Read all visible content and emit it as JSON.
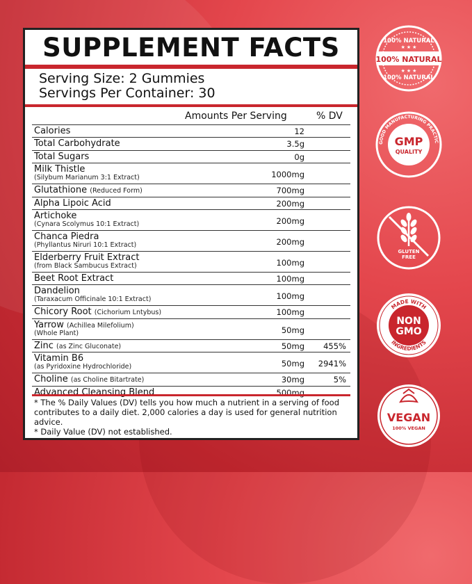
{
  "panel": {
    "title": "SUPPLEMENT FACTS",
    "serving_size": "Serving Size: 2 Gummies",
    "servings_per_container": "Servings Per Container: 30",
    "header_amount": "Amounts Per Serving",
    "header_dv": "% DV",
    "rows": [
      {
        "name": "Calories",
        "sub": "",
        "sub2": "",
        "amount": "12",
        "dv": ""
      },
      {
        "name": "Total Carbohydrate",
        "sub": "",
        "sub2": "",
        "amount": "3.5g",
        "dv": ""
      },
      {
        "name": "Total Sugars",
        "sub": "",
        "sub2": "",
        "amount": "0g",
        "dv": ""
      },
      {
        "name": "Milk Thistle",
        "sub": "",
        "sub2": "(Silybum Marianum 3:1 Extract)",
        "amount": "1000mg",
        "dv": ""
      },
      {
        "name": "Glutathione",
        "sub": "(Reduced Form)",
        "sub2": "",
        "amount": "700mg",
        "dv": ""
      },
      {
        "name": "Alpha Lipoic Acid",
        "sub": "",
        "sub2": "",
        "amount": "200mg",
        "dv": ""
      },
      {
        "name": "Artichoke",
        "sub": "",
        "sub2": "(Cynara Scolymus 10:1 Extract)",
        "amount": "200mg",
        "dv": ""
      },
      {
        "name": "Chanca Piedra",
        "sub": "",
        "sub2": "(Phyllantus Niruri 10:1 Extract)",
        "amount": "200mg",
        "dv": ""
      },
      {
        "name": "Elderberry Fruit Extract",
        "sub": "",
        "sub2": "(from Black Sambucus Extract)",
        "amount": "100mg",
        "dv": ""
      },
      {
        "name": "Beet Root Extract",
        "sub": "",
        "sub2": "",
        "amount": "100mg",
        "dv": ""
      },
      {
        "name": "Dandelion",
        "sub": "",
        "sub2": "(Taraxacum Officinale 10:1 Extract)",
        "amount": "100mg",
        "dv": ""
      },
      {
        "name": "Chicory Root",
        "sub": "(Cichorium Lntybus)",
        "sub2": "",
        "amount": "100mg",
        "dv": ""
      },
      {
        "name": "Yarrow",
        "sub": "(Achillea Milefolium)",
        "sub2": "(Whole Plant)",
        "amount": "50mg",
        "dv": ""
      },
      {
        "name": "Zinc",
        "sub": "(as Zinc Gluconate)",
        "sub2": "",
        "amount": "50mg",
        "dv": "455%"
      },
      {
        "name": "Vitamin B6",
        "sub": "",
        "sub2": "(as Pyridoxine Hydrochloride)",
        "amount": "50mg",
        "dv": "2941%"
      },
      {
        "name": "Choline",
        "sub": "(as Choline Bitartrate)",
        "sub2": "",
        "amount": "30mg",
        "dv": "5%"
      },
      {
        "name": "Advanced Cleansing Blend",
        "sub": "",
        "sub2": "",
        "amount": "500mg",
        "dv": ""
      }
    ],
    "footnote_1": "* The % Daily Values (DV) tells you how much a nutrient in a serving of food contributes to a daily diet. 2,000 calories a day is used for general nutrition advice.",
    "footnote_2": "* Daily Value (DV) not established."
  },
  "badges": {
    "natural": {
      "top": "100% NATURAL",
      "center": "100% NATURAL",
      "bottom": "100% NATURAL"
    },
    "gmp": {
      "ring": "GOOD MANUFACTURING PRACTICE CERTIFICATION",
      "line1": "GMP",
      "line2": "QUALITY"
    },
    "gluten": {
      "line1": "GLUTEN",
      "line2": "FREE",
      "icon": "wheat-crossed-icon"
    },
    "nongmo": {
      "ring_top": "MADE WITH",
      "ring_bottom": "INGREDIENTS",
      "line1": "NON",
      "line2": "GMO"
    },
    "vegan": {
      "line1": "VEGAN",
      "line2": "100% VEGAN",
      "icon": "leaf-icon"
    }
  },
  "colors": {
    "accent": "#c9262d",
    "badge_white": "#ffffff"
  }
}
